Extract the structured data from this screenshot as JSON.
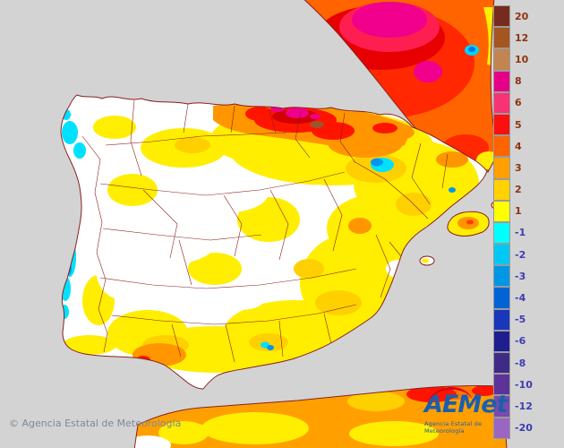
{
  "map": {
    "sea_color": "#d3d3d3",
    "land_color": "#ffffff",
    "boundary_color": "#8b1f1f",
    "region": "Iberian Peninsula temperature anomaly map"
  },
  "legend": {
    "positive_label_color": "#8c3310",
    "negative_label_color": "#3c3cb4",
    "items": [
      {
        "label": "20",
        "color": "#772b1e"
      },
      {
        "label": "12",
        "color": "#a5551f"
      },
      {
        "label": "10",
        "color": "#c28450"
      },
      {
        "label": "8",
        "color": "#e50087"
      },
      {
        "label": "6",
        "color": "#f73376"
      },
      {
        "label": "5",
        "color": "#fb0f0f"
      },
      {
        "label": "4",
        "color": "#ff6400"
      },
      {
        "label": "3",
        "color": "#ffa000"
      },
      {
        "label": "2",
        "color": "#ffd200"
      },
      {
        "label": "1",
        "color": "#ffff00"
      },
      {
        "label": "-1",
        "color": "#00ffff"
      },
      {
        "label": "-2",
        "color": "#00c8f5"
      },
      {
        "label": "-3",
        "color": "#0096e6"
      },
      {
        "label": "-4",
        "color": "#0064d7"
      },
      {
        "label": "-5",
        "color": "#1937bb"
      },
      {
        "label": "-6",
        "color": "#1e1e8f"
      },
      {
        "label": "-8",
        "color": "#3f2b87"
      },
      {
        "label": "-10",
        "color": "#5d3399"
      },
      {
        "label": "-12",
        "color": "#7b4aad"
      },
      {
        "label": "-20",
        "color": "#9a66c2"
      }
    ]
  },
  "footer": {
    "copyright": "© Agencia Estatal de Meteorología"
  },
  "logo": {
    "acronym": "AEMet",
    "subtitle": "Agencia Estatal de Meteorología"
  }
}
